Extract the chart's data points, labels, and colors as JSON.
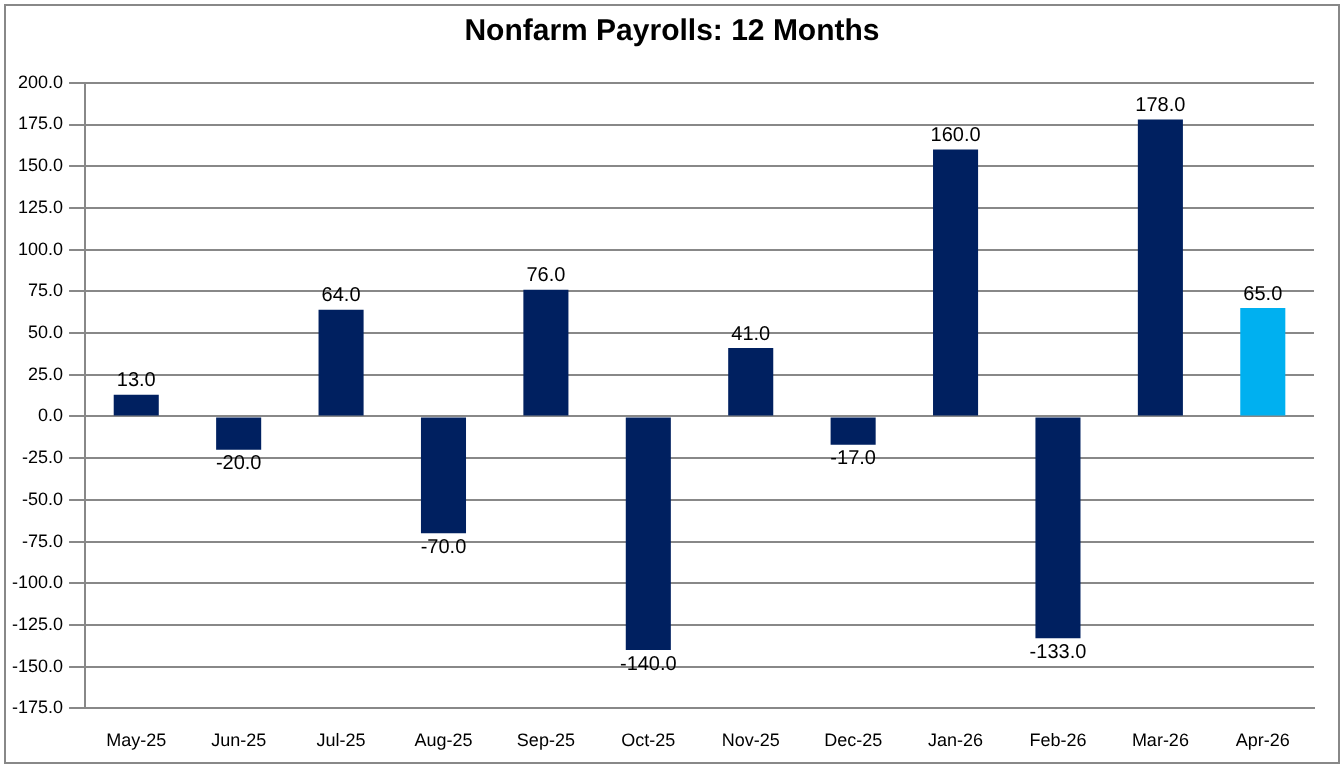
{
  "chart_data": {
    "type": "bar",
    "title": "Nonfarm Payrolls: 12 Months",
    "categories": [
      "May-25",
      "Jun-25",
      "Jul-25",
      "Aug-25",
      "Sep-25",
      "Oct-25",
      "Nov-25",
      "Dec-25",
      "Jan-26",
      "Feb-26",
      "Mar-26",
      "Apr-26"
    ],
    "values": [
      13,
      -20,
      64,
      -70,
      76,
      -140,
      41,
      -17,
      160,
      -133,
      178,
      65
    ],
    "colors": [
      "#002060",
      "#002060",
      "#002060",
      "#002060",
      "#002060",
      "#002060",
      "#002060",
      "#002060",
      "#002060",
      "#002060",
      "#002060",
      "#00b0f0"
    ],
    "value_labels": [
      "13.0",
      "-20.0",
      "64.0",
      "-70.0",
      "76.0",
      "-140.0",
      "41.0",
      "-17.0",
      "160.0",
      "-133.0",
      "178.0",
      "65.0"
    ],
    "ylim": [
      -175,
      200
    ],
    "yticks": [
      {
        "value": -175,
        "label": "-175.0"
      },
      {
        "value": -150,
        "label": "-150.0"
      },
      {
        "value": -125,
        "label": "-125.0"
      },
      {
        "value": -100,
        "label": "-100.0"
      },
      {
        "value": -75,
        "label": "-75.0"
      },
      {
        "value": -50,
        "label": "-50.0"
      },
      {
        "value": -25,
        "label": "-25.0"
      },
      {
        "value": 0,
        "label": "0.0"
      },
      {
        "value": 25,
        "label": "25.0"
      },
      {
        "value": 50,
        "label": "50.0"
      },
      {
        "value": 75,
        "label": "75.0"
      },
      {
        "value": 100,
        "label": "100.0"
      },
      {
        "value": 125,
        "label": "125.0"
      },
      {
        "value": 150,
        "label": "150.0"
      },
      {
        "value": 175,
        "label": "175.0"
      },
      {
        "value": 200,
        "label": "200.0"
      }
    ],
    "grid": "y",
    "legend": false
  }
}
